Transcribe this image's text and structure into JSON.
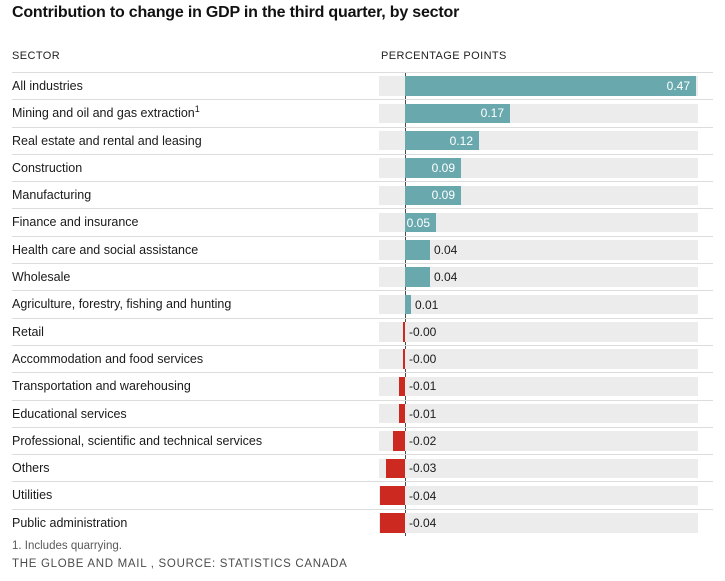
{
  "title": "Contribution to change in GDP in the third quarter, by sector",
  "columns": {
    "sector": "SECTOR",
    "points": "PERCENTAGE POINTS"
  },
  "chart_data": {
    "type": "bar",
    "orientation": "horizontal",
    "title": "Contribution to change in GDP in the third quarter, by sector",
    "xlabel": "PERCENTAGE POINTS",
    "ylabel": "SECTOR",
    "xlim": [
      -0.042,
      0.47
    ],
    "grid": false,
    "legend": "none",
    "positive_color": "#69a9ae",
    "negative_color": "#cc2a21",
    "track_color": "#ececec",
    "categories": [
      {
        "label": "All industries",
        "sup": ""
      },
      {
        "label": "Mining and oil and gas extraction",
        "sup": "1"
      },
      {
        "label": "Real estate and rental and leasing",
        "sup": ""
      },
      {
        "label": "Construction",
        "sup": ""
      },
      {
        "label": "Manufacturing",
        "sup": ""
      },
      {
        "label": "Finance and insurance",
        "sup": ""
      },
      {
        "label": "Health care and social assistance",
        "sup": ""
      },
      {
        "label": "Wholesale",
        "sup": ""
      },
      {
        "label": "Agriculture, forestry, fishing and hunting",
        "sup": ""
      },
      {
        "label": "Retail",
        "sup": ""
      },
      {
        "label": "Accommodation and food services",
        "sup": ""
      },
      {
        "label": "Transportation and warehousing",
        "sup": ""
      },
      {
        "label": "Educational services",
        "sup": ""
      },
      {
        "label": "Professional, scientific and technical services",
        "sup": ""
      },
      {
        "label": "Others",
        "sup": ""
      },
      {
        "label": "Utilities",
        "sup": ""
      },
      {
        "label": "Public administration",
        "sup": ""
      }
    ],
    "values": [
      0.47,
      0.17,
      0.12,
      0.09,
      0.09,
      0.05,
      0.04,
      0.04,
      0.01,
      -0.001,
      -0.001,
      -0.01,
      -0.01,
      -0.02,
      -0.03,
      -0.04,
      -0.04
    ],
    "value_labels": [
      "0.47",
      "0.17",
      "0.12",
      "0.09",
      "0.09",
      "0.05",
      "0.04",
      "0.04",
      "0.01",
      "-0.00",
      "-0.00",
      "-0.01",
      "-0.01",
      "-0.02",
      "-0.03",
      "-0.04",
      "-0.04"
    ]
  },
  "footnote": "1. Includes quarrying.",
  "credit": "THE GLOBE AND MAIL , SOURCE: STATISTICS CANADA"
}
